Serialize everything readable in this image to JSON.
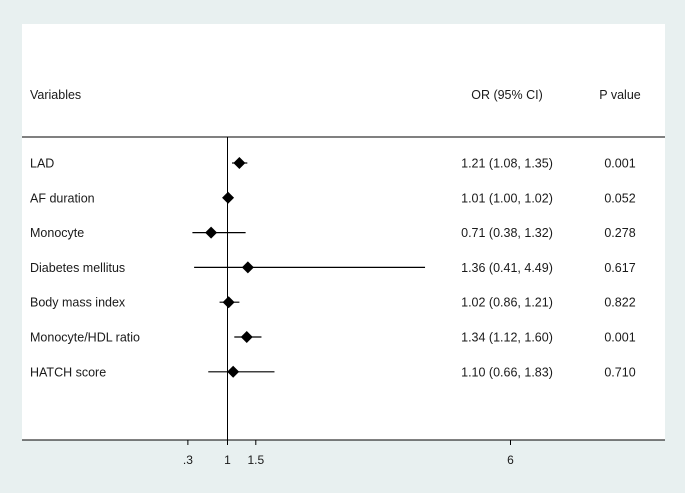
{
  "chart_data": {
    "type": "forest",
    "headers": {
      "variable": "Variables",
      "or": "OR (95% CI)",
      "p": "P value"
    },
    "rows": [
      {
        "variable": "LAD",
        "or": 1.21,
        "lo": 1.08,
        "hi": 1.35,
        "or_text": "1.21 (1.08, 1.35)",
        "p": "0.001"
      },
      {
        "variable": "AF duration",
        "or": 1.01,
        "lo": 1.0,
        "hi": 1.02,
        "or_text": "1.01 (1.00, 1.02)",
        "p": "0.052"
      },
      {
        "variable": "Monocyte",
        "or": 0.71,
        "lo": 0.38,
        "hi": 1.32,
        "or_text": "0.71 (0.38, 1.32)",
        "p": "0.278"
      },
      {
        "variable": "Diabetes mellitus",
        "or": 1.36,
        "lo": 0.41,
        "hi": 4.49,
        "or_text": "1.36 (0.41, 4.49)",
        "p": "0.617"
      },
      {
        "variable": "Body mass index",
        "or": 1.02,
        "lo": 0.86,
        "hi": 1.21,
        "or_text": "1.02 (0.86, 1.21)",
        "p": "0.822"
      },
      {
        "variable": "Monocyte/HDL ratio",
        "or": 1.34,
        "lo": 1.12,
        "hi": 1.6,
        "or_text": "1.34 (1.12, 1.60)",
        "p": "0.001"
      },
      {
        "variable": "HATCH score",
        "or": 1.1,
        "lo": 0.66,
        "hi": 1.83,
        "or_text": "1.10 (0.66, 1.83)",
        "p": "0.710"
      }
    ],
    "x_ticks": [
      {
        "value": 0.3,
        "label": ".3"
      },
      {
        "value": 1,
        "label": "1"
      },
      {
        "value": 1.5,
        "label": "1.5"
      },
      {
        "value": 6,
        "label": "6"
      }
    ],
    "reference_line": 1,
    "colors": {
      "background": "#e8f0f0",
      "panel": "#ffffff",
      "mark": "#000000"
    }
  }
}
